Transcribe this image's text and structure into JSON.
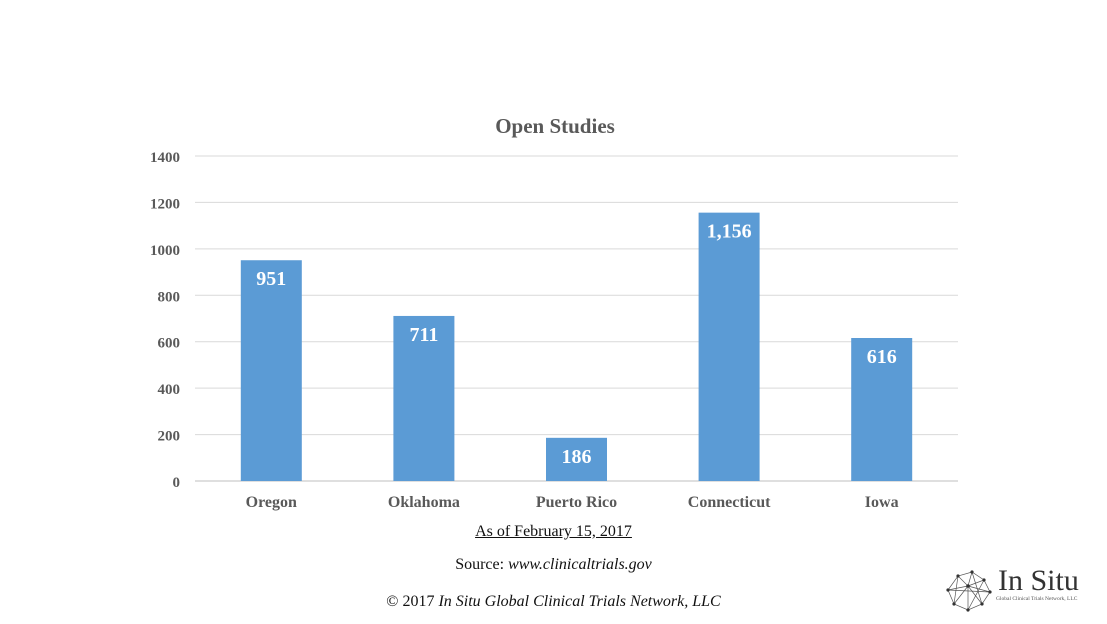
{
  "chart_data": {
    "type": "bar",
    "title": "Open Studies",
    "categories": [
      "Oregon",
      "Oklahoma",
      "Puerto Rico",
      "Connecticut",
      "Iowa"
    ],
    "values": [
      951,
      711,
      186,
      1156,
      616
    ],
    "data_labels": [
      "951",
      "711",
      "186",
      "1,156",
      "616"
    ],
    "ylim": [
      0,
      1400
    ],
    "yticks": [
      0,
      200,
      400,
      600,
      800,
      1000,
      1200,
      1400
    ],
    "bar_color": "#5b9bd5",
    "grid": true,
    "legend": "none"
  },
  "footer": {
    "as_of": "As of February 15, 2017",
    "source_label": "Source: ",
    "source_url": "www.clinicaltrials.gov",
    "copyright_prefix": "© 2017 ",
    "copyright_org": "In Situ Global Clinical Trials Network, LLC"
  },
  "logo": {
    "name": "In Situ",
    "tagline": "Global Clinical Trials Network, LLC",
    "icon": "network-globe-icon"
  }
}
